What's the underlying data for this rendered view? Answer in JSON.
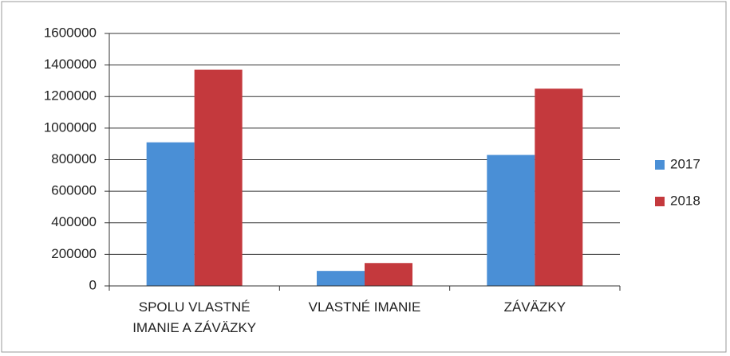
{
  "chart_data": {
    "type": "bar",
    "categories": [
      "SPOLU VLASTNÉ IMANIE A ZÁVÄZKY",
      "VLASTNÉ IMANIE",
      "ZÁVÄZKY"
    ],
    "series": [
      {
        "name": "2017",
        "color": "#4a8fd6",
        "values": [
          910000,
          95000,
          830000
        ]
      },
      {
        "name": "2018",
        "color": "#c4393d",
        "values": [
          1370000,
          145000,
          1250000
        ]
      }
    ],
    "ylim": [
      0,
      1600000
    ],
    "yticks": [
      0,
      200000,
      400000,
      600000,
      800000,
      1000000,
      1200000,
      1400000,
      1600000
    ],
    "grid": true,
    "legend": "right"
  }
}
